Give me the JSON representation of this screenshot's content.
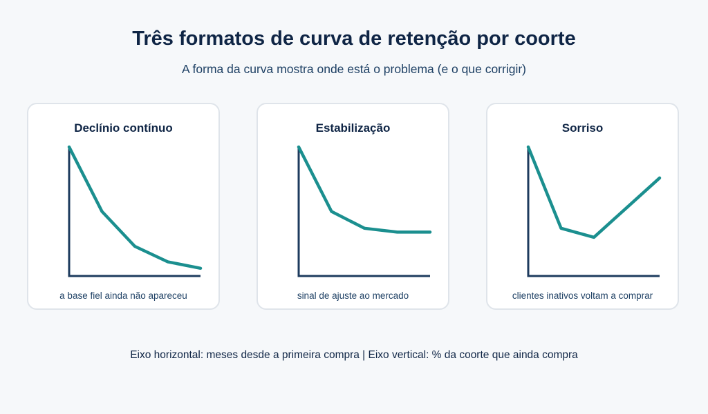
{
  "header": {
    "title": "Três formatos de curva de retenção por coorte",
    "subtitle": "A forma da curva mostra onde está o problema (e o que corrigir)"
  },
  "footer": {
    "note": "Eixo horizontal: meses desde a primeira compra | Eixo vertical: % da coorte que ainda compra"
  },
  "colors": {
    "curve": "#1b8f8f",
    "axis": "#1d3b5e"
  },
  "chart_data": [
    {
      "type": "line",
      "title": "Declínio contínuo",
      "caption": "a base fiel ainda não apareceu",
      "x": [
        0,
        1,
        2,
        3,
        4
      ],
      "y": [
        100,
        50,
        23,
        11,
        6
      ],
      "xlim": [
        0,
        4
      ],
      "ylim": [
        0,
        100
      ],
      "xlabel": "",
      "ylabel": "",
      "grid": false
    },
    {
      "type": "line",
      "title": "Estabilização",
      "caption": "sinal de ajuste ao mercado",
      "x": [
        0,
        1,
        2,
        3,
        4
      ],
      "y": [
        100,
        50,
        37,
        34,
        34
      ],
      "xlim": [
        0,
        4
      ],
      "ylim": [
        0,
        100
      ],
      "xlabel": "",
      "ylabel": "",
      "grid": false
    },
    {
      "type": "line",
      "title": "Sorriso",
      "caption": "clientes inativos voltam a comprar",
      "x": [
        0,
        1,
        2,
        3,
        4
      ],
      "y": [
        100,
        37,
        30,
        53,
        76
      ],
      "xlim": [
        0,
        4
      ],
      "ylim": [
        0,
        100
      ],
      "xlabel": "",
      "ylabel": "",
      "grid": false
    }
  ]
}
